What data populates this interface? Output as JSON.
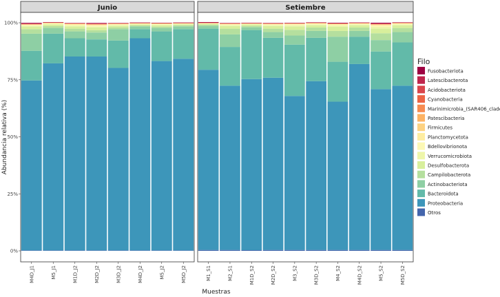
{
  "chart_data": {
    "type": "bar",
    "stacked": true,
    "xlabel": "Muestras",
    "ylabel": "Abundancia relativa (%)",
    "ylim": [
      0,
      1
    ],
    "yticks": [
      {
        "value": 0,
        "label": "0%"
      },
      {
        "value": 0.25,
        "label": "25%"
      },
      {
        "value": 0.5,
        "label": "50%"
      },
      {
        "value": 0.75,
        "label": "75%"
      },
      {
        "value": 1,
        "label": "100%"
      }
    ],
    "grid": false,
    "legend_position": "right",
    "legend_title": "Filo",
    "phyla": [
      "Fusobacteriota",
      "Latescibacterota",
      "Acidobacteriota",
      "Cyanobacteria",
      "Marinimicrobia_(SAR406_clade)",
      "Patescibacteria",
      "Firmicutes",
      "Planctomycetota",
      "Bdellovibrionota",
      "Verrucomicrobiota",
      "Desulfobacterota",
      "Campilobacterota",
      "Actinobacteriota",
      "Bacteroidota",
      "Proteobacteria",
      "Otros"
    ],
    "colors": [
      "#9E0142",
      "#C0264D",
      "#DA464C",
      "#ED6545",
      "#F78C52",
      "#FDB365",
      "#FDD282",
      "#FEEDA1",
      "#FCF8B5",
      "#EEF6AA",
      "#D8EF9C",
      "#B5DF9E",
      "#8ECFA4",
      "#62BAA9",
      "#3D96BA",
      "#4465AC"
    ],
    "stack_order_bottom_to_top": [
      "Otros",
      "Proteobacteria",
      "Bacteroidota",
      "Actinobacteriota",
      "Campilobacterota",
      "Desulfobacterota",
      "Verrucomicrobiota",
      "Bdellovibrionota",
      "Planctomycetota",
      "Firmicutes",
      "Patescibacteria",
      "Marinimicrobia_(SAR406_clade)",
      "Cyanobacteria",
      "Acidobacteriota",
      "Latescibacterota",
      "Fusobacteriota"
    ],
    "facets": [
      {
        "label": "Junio",
        "samples": [
          {
            "name": "M4D_J1",
            "values": {
              "Otros": 0.002,
              "Proteobacteria": 0.745,
              "Bacteroidota": 0.13,
              "Actinobacteriota": 0.075,
              "Campilobacterota": 0.02,
              "Desulfobacterota": 0.012,
              "Verrucomicrobiota": 0.003,
              "Bdellovibrionota": 0.002,
              "Planctomycetota": 0.002,
              "Firmicutes": 0.001,
              "Patescibacteria": 0.001,
              "Marinimicrobia_(SAR406_clade)": 0.0005,
              "Cyanobacteria": 0.001,
              "Acidobacteriota": 0.0015,
              "Latescibacterota": 0.0005,
              "Fusobacteriota": 0.003
            }
          },
          {
            "name": "M5_J1",
            "values": {
              "Otros": 0.002,
              "Proteobacteria": 0.82,
              "Bacteroidota": 0.13,
              "Actinobacteriota": 0.025,
              "Campilobacterota": 0.008,
              "Desulfobacterota": 0.007,
              "Verrucomicrobiota": 0.003,
              "Bdellovibrionota": 0.002,
              "Planctomycetota": 0.002,
              "Firmicutes": 0.0005,
              "Patescibacteria": 0.0005,
              "Marinimicrobia_(SAR406_clade)": 0.0005,
              "Cyanobacteria": 0.0005,
              "Acidobacteriota": 0.0005,
              "Latescibacterota": 0.0005,
              "Fusobacteriota": 0.001
            }
          },
          {
            "name": "M1D_J2",
            "values": {
              "Otros": 0.002,
              "Proteobacteria": 0.85,
              "Bacteroidota": 0.08,
              "Actinobacteriota": 0.03,
              "Campilobacterota": 0.012,
              "Desulfobacterota": 0.01,
              "Verrucomicrobiota": 0.004,
              "Bdellovibrionota": 0.003,
              "Planctomycetota": 0.003,
              "Firmicutes": 0.001,
              "Patescibacteria": 0.0005,
              "Marinimicrobia_(SAR406_clade)": 0.0005,
              "Cyanobacteria": 0.0005,
              "Acidobacteriota": 0.001,
              "Latescibacterota": 0.0005,
              "Fusobacteriota": 0.001
            }
          },
          {
            "name": "M2D_J2",
            "values": {
              "Otros": 0.002,
              "Proteobacteria": 0.85,
              "Bacteroidota": 0.075,
              "Actinobacteriota": 0.03,
              "Campilobacterota": 0.01,
              "Desulfobacterota": 0.012,
              "Verrucomicrobiota": 0.005,
              "Bdellovibrionota": 0.003,
              "Planctomycetota": 0.003,
              "Firmicutes": 0.002,
              "Patescibacteria": 0.001,
              "Marinimicrobia_(SAR406_clade)": 0.0005,
              "Cyanobacteria": 0.001,
              "Acidobacteriota": 0.002,
              "Latescibacterota": 0.0005,
              "Fusobacteriota": 0.002
            }
          },
          {
            "name": "M3D_J2",
            "values": {
              "Otros": 0.002,
              "Proteobacteria": 0.8,
              "Bacteroidota": 0.12,
              "Actinobacteriota": 0.05,
              "Campilobacterota": 0.008,
              "Desulfobacterota": 0.007,
              "Verrucomicrobiota": 0.003,
              "Bdellovibrionota": 0.002,
              "Planctomycetota": 0.002,
              "Firmicutes": 0.001,
              "Patescibacteria": 0.0005,
              "Marinimicrobia_(SAR406_clade)": 0.0005,
              "Cyanobacteria": 0.0005,
              "Acidobacteriota": 0.001,
              "Latescibacterota": 0.0005,
              "Fusobacteriota": 0.001
            }
          },
          {
            "name": "M4D_J2",
            "values": {
              "Otros": 0.002,
              "Proteobacteria": 0.93,
              "Bacteroidota": 0.04,
              "Actinobacteriota": 0.012,
              "Campilobacterota": 0.004,
              "Desulfobacterota": 0.004,
              "Verrucomicrobiota": 0.002,
              "Bdellovibrionota": 0.002,
              "Planctomycetota": 0.001,
              "Firmicutes": 0.0005,
              "Patescibacteria": 0.0005,
              "Marinimicrobia_(SAR406_clade)": 0.0005,
              "Cyanobacteria": 0.0005,
              "Acidobacteriota": 0.0005,
              "Latescibacterota": 0.0005,
              "Fusobacteriota": 0.001
            }
          },
          {
            "name": "M5_J2",
            "values": {
              "Otros": 0.002,
              "Proteobacteria": 0.83,
              "Bacteroidota": 0.13,
              "Actinobacteriota": 0.015,
              "Campilobacterota": 0.006,
              "Desulfobacterota": 0.006,
              "Verrucomicrobiota": 0.003,
              "Bdellovibrionota": 0.002,
              "Planctomycetota": 0.002,
              "Firmicutes": 0.0005,
              "Patescibacteria": 0.0005,
              "Marinimicrobia_(SAR406_clade)": 0.0005,
              "Cyanobacteria": 0.0005,
              "Acidobacteriota": 0.0005,
              "Latescibacterota": 0.0005,
              "Fusobacteriota": 0.001
            }
          },
          {
            "name": "M5D_J2",
            "values": {
              "Otros": 0.002,
              "Proteobacteria": 0.84,
              "Bacteroidota": 0.13,
              "Actinobacteriota": 0.012,
              "Campilobacterota": 0.005,
              "Desulfobacterota": 0.004,
              "Verrucomicrobiota": 0.002,
              "Bdellovibrionota": 0.001,
              "Planctomycetota": 0.001,
              "Firmicutes": 0.0005,
              "Patescibacteria": 0.0005,
              "Marinimicrobia_(SAR406_clade)": 0.0005,
              "Cyanobacteria": 0.0005,
              "Acidobacteriota": 0.0005,
              "Latescibacterota": 0.0005,
              "Fusobacteriota": 0.001
            }
          }
        ]
      },
      {
        "label": "Setiembre",
        "samples": [
          {
            "name": "M1_S1",
            "values": {
              "Otros": 0.004,
              "Proteobacteria": 0.79,
              "Bacteroidota": 0.18,
              "Actinobacteriota": 0.012,
              "Campilobacterota": 0.005,
              "Desulfobacterota": 0.004,
              "Verrucomicrobiota": 0.001,
              "Bdellovibrionota": 0.001,
              "Planctomycetota": 0.001,
              "Firmicutes": 0.0005,
              "Patescibacteria": 0.0005,
              "Marinimicrobia_(SAR406_clade)": 0.0005,
              "Cyanobacteria": 0.0005,
              "Acidobacteriota": 0.0005,
              "Latescibacterota": 0.0005,
              "Fusobacteriota": 0.002
            }
          },
          {
            "name": "M2_S1",
            "values": {
              "Otros": 0.004,
              "Proteobacteria": 0.72,
              "Bacteroidota": 0.17,
              "Actinobacteriota": 0.055,
              "Campilobacterota": 0.025,
              "Desulfobacterota": 0.012,
              "Verrucomicrobiota": 0.004,
              "Bdellovibrionota": 0.002,
              "Planctomycetota": 0.002,
              "Firmicutes": 0.001,
              "Patescibacteria": 0.0005,
              "Marinimicrobia_(SAR406_clade)": 0.0005,
              "Cyanobacteria": 0.0005,
              "Acidobacteriota": 0.001,
              "Latescibacterota": 0.0005,
              "Fusobacteriota": 0.001
            }
          },
          {
            "name": "M1D_S2",
            "values": {
              "Otros": 0.003,
              "Proteobacteria": 0.75,
              "Bacteroidota": 0.215,
              "Actinobacteriota": 0.012,
              "Campilobacterota": 0.006,
              "Desulfobacterota": 0.006,
              "Verrucomicrobiota": 0.002,
              "Bdellovibrionota": 0.001,
              "Planctomycetota": 0.001,
              "Firmicutes": 0.0005,
              "Patescibacteria": 0.0005,
              "Marinimicrobia_(SAR406_clade)": 0.0005,
              "Cyanobacteria": 0.0005,
              "Acidobacteriota": 0.0005,
              "Latescibacterota": 0.0005,
              "Fusobacteriota": 0.001
            }
          },
          {
            "name": "M2D_S2",
            "values": {
              "Otros": 0.004,
              "Proteobacteria": 0.755,
              "Bacteroidota": 0.175,
              "Actinobacteriota": 0.025,
              "Campilobacterota": 0.015,
              "Desulfobacterota": 0.012,
              "Verrucomicrobiota": 0.004,
              "Bdellovibrionota": 0.002,
              "Planctomycetota": 0.002,
              "Firmicutes": 0.001,
              "Patescibacteria": 0.0005,
              "Marinimicrobia_(SAR406_clade)": 0.0005,
              "Cyanobacteria": 0.0005,
              "Acidobacteriota": 0.001,
              "Latescibacterota": 0.0005,
              "Fusobacteriota": 0.001
            }
          },
          {
            "name": "M3_S2",
            "values": {
              "Otros": 0.004,
              "Proteobacteria": 0.675,
              "Bacteroidota": 0.225,
              "Actinobacteriota": 0.04,
              "Campilobacterota": 0.025,
              "Desulfobacterota": 0.015,
              "Verrucomicrobiota": 0.005,
              "Bdellovibrionota": 0.003,
              "Planctomycetota": 0.003,
              "Firmicutes": 0.001,
              "Patescibacteria": 0.0005,
              "Marinimicrobia_(SAR406_clade)": 0.0005,
              "Cyanobacteria": 0.0005,
              "Acidobacteriota": 0.001,
              "Latescibacterota": 0.0005,
              "Fusobacteriota": 0.001
            }
          },
          {
            "name": "M3D_S2",
            "values": {
              "Otros": 0.004,
              "Proteobacteria": 0.74,
              "Bacteroidota": 0.19,
              "Actinobacteriota": 0.03,
              "Campilobacterota": 0.015,
              "Desulfobacterota": 0.01,
              "Verrucomicrobiota": 0.004,
              "Bdellovibrionota": 0.002,
              "Planctomycetota": 0.002,
              "Firmicutes": 0.001,
              "Patescibacteria": 0.0005,
              "Marinimicrobia_(SAR406_clade)": 0.0005,
              "Cyanobacteria": 0.0005,
              "Acidobacteriota": 0.001,
              "Latescibacterota": 0.0005,
              "Fusobacteriota": 0.001
            }
          },
          {
            "name": "M4_S2",
            "values": {
              "Otros": 0.004,
              "Proteobacteria": 0.65,
              "Bacteroidota": 0.175,
              "Actinobacteriota": 0.11,
              "Campilobacterota": 0.025,
              "Desulfobacterota": 0.018,
              "Verrucomicrobiota": 0.006,
              "Bdellovibrionota": 0.003,
              "Planctomycetota": 0.003,
              "Firmicutes": 0.001,
              "Patescibacteria": 0.0005,
              "Marinimicrobia_(SAR406_clade)": 0.0005,
              "Cyanobacteria": 0.0005,
              "Acidobacteriota": 0.001,
              "Latescibacterota": 0.0005,
              "Fusobacteriota": 0.002
            }
          },
          {
            "name": "M4D_S2",
            "values": {
              "Otros": 0.004,
              "Proteobacteria": 0.815,
              "Bacteroidota": 0.12,
              "Actinobacteriota": 0.025,
              "Campilobacterota": 0.015,
              "Desulfobacterota": 0.01,
              "Verrucomicrobiota": 0.004,
              "Bdellovibrionota": 0.002,
              "Planctomycetota": 0.002,
              "Firmicutes": 0.0005,
              "Patescibacteria": 0.0005,
              "Marinimicrobia_(SAR406_clade)": 0.0005,
              "Cyanobacteria": 0.0005,
              "Acidobacteriota": 0.001,
              "Latescibacterota": 0.0005,
              "Fusobacteriota": 0.001
            }
          },
          {
            "name": "M5_S2",
            "values": {
              "Otros": 0.004,
              "Proteobacteria": 0.705,
              "Bacteroidota": 0.165,
              "Actinobacteriota": 0.05,
              "Campilobacterota": 0.03,
              "Desulfobacterota": 0.02,
              "Verrucomicrobiota": 0.008,
              "Bdellovibrionota": 0.004,
              "Planctomycetota": 0.004,
              "Firmicutes": 0.002,
              "Patescibacteria": 0.001,
              "Marinimicrobia_(SAR406_clade)": 0.0005,
              "Cyanobacteria": 0.001,
              "Acidobacteriota": 0.002,
              "Latescibacterota": 0.0005,
              "Fusobacteriota": 0.003
            }
          },
          {
            "name": "M5D_S2",
            "values": {
              "Otros": 0.004,
              "Proteobacteria": 0.72,
              "Bacteroidota": 0.19,
              "Actinobacteriota": 0.045,
              "Campilobacterota": 0.018,
              "Desulfobacterota": 0.012,
              "Verrucomicrobiota": 0.004,
              "Bdellovibrionota": 0.002,
              "Planctomycetota": 0.002,
              "Firmicutes": 0.001,
              "Patescibacteria": 0.0005,
              "Marinimicrobia_(SAR406_clade)": 0.0005,
              "Cyanobacteria": 0.0005,
              "Acidobacteriota": 0.001,
              "Latescibacterota": 0.0005,
              "Fusobacteriota": 0.001
            }
          }
        ]
      }
    ]
  }
}
